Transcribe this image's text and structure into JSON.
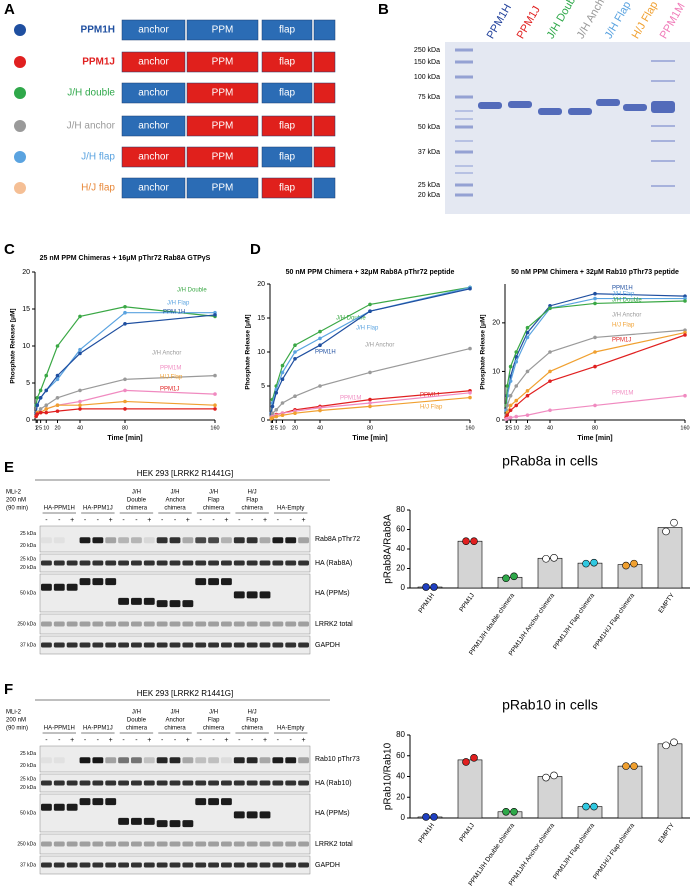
{
  "panel_labels": [
    "A",
    "B",
    "C",
    "D",
    "E",
    "F"
  ],
  "constructs": {
    "segment_labels": [
      "anchor",
      "PPM",
      "flap"
    ],
    "rows": [
      {
        "name": "PPM1H",
        "color": "#1f4fa0",
        "segment_colors": [
          "#2b6cb5",
          "#2b6cb5",
          "#2b6cb5",
          "#2b6cb5"
        ]
      },
      {
        "name": "PPM1J",
        "color": "#e02020",
        "segment_colors": [
          "#e0201c",
          "#e0201c",
          "#e0201c",
          "#e0201c"
        ]
      },
      {
        "name": "J/H double",
        "color": "#2fa84a",
        "segment_colors": [
          "#2b6cb5",
          "#e0201c",
          "#2b6cb5",
          "#e0201c"
        ]
      },
      {
        "name": "J/H anchor",
        "color": "#9a9a9a",
        "segment_colors": [
          "#2b6cb5",
          "#e0201c",
          "#e0201c",
          "#e0201c"
        ]
      },
      {
        "name": "J/H flap",
        "color": "#5aa3e0",
        "segment_colors": [
          "#e0201c",
          "#e0201c",
          "#2b6cb5",
          "#e0201c"
        ]
      },
      {
        "name": "H/J flap",
        "color": "#e8883a",
        "dot_color": "#f5bf95",
        "segment_colors": [
          "#2b6cb5",
          "#2b6cb5",
          "#e0201c",
          "#2b6cb5"
        ]
      }
    ]
  },
  "gel": {
    "lanes": [
      {
        "name": "PPM1H",
        "color": "#1f3f9a"
      },
      {
        "name": "PPM1J",
        "color": "#e02020"
      },
      {
        "name": "J/H Double",
        "color": "#2fa84a"
      },
      {
        "name": "J/H Anchor",
        "color": "#9a9a9a"
      },
      {
        "name": "J/H Flap",
        "color": "#5aa3e0"
      },
      {
        "name": "H/J Flap",
        "color": "#f0a030"
      },
      {
        "name": "PPM1M",
        "color": "#f07ab8"
      }
    ],
    "markers": [
      "250 kDa",
      "150 kDa",
      "100 kDa",
      "75 kDa",
      "50 kDa",
      "37 kDa",
      "25 kDa",
      "20 kDa"
    ]
  },
  "chart_data": [
    {
      "type": "line",
      "title": "25 nM PPM Chimeras + 16μM pThr72 Rab8A GTPγS",
      "x_label": "Time [min]",
      "y_label": "Phosphate Release [μM]",
      "x": [
        1,
        2,
        5,
        10,
        20,
        40,
        80,
        160
      ],
      "xlim": [
        0,
        160
      ],
      "xticks": [
        1,
        2,
        5,
        10,
        20,
        40,
        80,
        160
      ],
      "ylim": [
        0,
        20
      ],
      "yticks": [
        0,
        5,
        10,
        15,
        20
      ],
      "series": [
        {
          "name": "J/H Double",
          "color": "#3aa845",
          "values": [
            2,
            3,
            4,
            6,
            10,
            14,
            15.3,
            14
          ]
        },
        {
          "name": "J/H Flap",
          "color": "#5aa3e0",
          "values": [
            1,
            2,
            3,
            4,
            5.5,
            9.5,
            14.5,
            14.5
          ]
        },
        {
          "name": "PPM 1H",
          "color": "#1f4fa0",
          "values": [
            1,
            2,
            3,
            4,
            6,
            9,
            13,
            14.2
          ]
        },
        {
          "name": "J/H Anchor",
          "color": "#9a9a9a",
          "values": [
            0.5,
            1,
            1.5,
            2,
            3,
            4,
            5.5,
            6
          ]
        },
        {
          "name": "PPM1M",
          "color": "#f08ac0",
          "values": [
            0.5,
            1,
            1,
            1.5,
            2,
            2.5,
            4,
            3.5
          ]
        },
        {
          "name": "H/J Flap",
          "color": "#f0a030",
          "values": [
            0.5,
            1,
            1,
            1.5,
            2,
            2,
            2.5,
            2
          ]
        },
        {
          "name": "PPM1J",
          "color": "#e02020",
          "values": [
            0.5,
            0.8,
            1,
            1,
            1.2,
            1.5,
            1.5,
            1.5
          ]
        }
      ]
    },
    {
      "type": "line",
      "title": "50 nM PPM Chimera + 32μM Rab8A pThr72 peptide",
      "x_label": "Time [min]",
      "y_label": "Phosphate Release [μM]",
      "x": [
        1,
        2,
        5,
        10,
        20,
        40,
        80,
        160
      ],
      "xlim": [
        0,
        160
      ],
      "xticks": [
        1,
        2,
        5,
        10,
        20,
        40,
        80,
        160
      ],
      "ylim": [
        0,
        20
      ],
      "yticks": [
        0,
        5,
        10,
        15,
        20
      ],
      "series": [
        {
          "name": "J/H Double",
          "color": "#3aa845",
          "values": [
            1,
            3,
            5,
            8,
            11,
            13,
            17,
            19.5
          ]
        },
        {
          "name": "J/H Flap",
          "color": "#5aa3e0",
          "values": [
            1,
            2.5,
            4.5,
            7,
            10,
            12,
            16,
            19.5
          ]
        },
        {
          "name": "PPM1H",
          "color": "#1f4fa0",
          "values": [
            1,
            2,
            4,
            6,
            9,
            11,
            16,
            19.3
          ]
        },
        {
          "name": "J/H Anchor",
          "color": "#9a9a9a",
          "values": [
            0.5,
            1,
            1.5,
            2.5,
            3.5,
            5,
            7,
            10.5
          ]
        },
        {
          "name": "PPM1J",
          "color": "#e02020",
          "values": [
            0.3,
            0.5,
            0.8,
            1,
            1.5,
            2,
            3,
            4.3
          ]
        },
        {
          "name": "PPM1M",
          "color": "#f08ac0",
          "values": [
            0.3,
            0.5,
            0.7,
            1,
            1.3,
            1.8,
            2.5,
            4
          ]
        },
        {
          "name": "H/J Flap",
          "color": "#f0a030",
          "values": [
            0.2,
            0.3,
            0.5,
            0.7,
            1,
            1.4,
            2,
            3.3
          ]
        }
      ]
    },
    {
      "type": "line",
      "title": "50 nM PPM Chimera + 32μM Rab10 pThr73 peptide",
      "x_label": "Time [min]",
      "y_label": "Phosphate Release [μM]",
      "x": [
        1,
        2,
        5,
        10,
        20,
        40,
        80,
        160
      ],
      "xlim": [
        0,
        160
      ],
      "xticks": [
        1,
        2,
        5,
        10,
        20,
        40,
        80,
        160
      ],
      "ylim": [
        0,
        28
      ],
      "yticks": [
        0,
        10,
        20
      ],
      "series": [
        {
          "name": "PPM1H",
          "color": "#1f4fa0",
          "values": [
            2,
            5,
            9,
            13,
            18,
            23.5,
            26,
            25.5
          ]
        },
        {
          "name": "J/H Flap",
          "color": "#5aa3e0",
          "values": [
            2,
            5,
            8,
            12,
            17,
            23,
            25,
            25
          ]
        },
        {
          "name": "J/H Double",
          "color": "#3aa845",
          "values": [
            3,
            7,
            11,
            14,
            19,
            23,
            24,
            24.5
          ]
        },
        {
          "name": "J/H Anchor",
          "color": "#9a9a9a",
          "values": [
            1,
            3,
            5,
            7,
            10,
            14,
            17,
            18.5
          ]
        },
        {
          "name": "H/J Flap",
          "color": "#f0a030",
          "values": [
            0.5,
            1.5,
            3,
            4,
            6,
            10,
            14,
            18
          ]
        },
        {
          "name": "PPM1J",
          "color": "#e02020",
          "values": [
            0.5,
            1,
            2,
            3,
            5,
            8,
            11,
            17.5
          ]
        },
        {
          "name": "PPM1M",
          "color": "#f08ac0",
          "values": [
            0.2,
            0.3,
            0.5,
            0.7,
            1,
            2,
            3,
            5
          ]
        }
      ]
    },
    {
      "type": "bar",
      "title": "pRab8a in cells",
      "y_label": "pRab8A/Rab8A",
      "color": "#d4d4d4",
      "categories": [
        "PPM1H",
        "PPM1J",
        "PPM1J/H double chimera",
        "PPM1J/H Anchor chimera",
        "PPM1J/H Flap chimera",
        "PPM1H/J Flap chimera",
        "EMPTY"
      ],
      "values": [
        1,
        48,
        11,
        30.5,
        25.5,
        24,
        62
      ],
      "points": [
        [
          1,
          1
        ],
        [
          48,
          48
        ],
        [
          10,
          12
        ],
        [
          30,
          31
        ],
        [
          25,
          26
        ],
        [
          23,
          25
        ],
        [
          58,
          67
        ]
      ],
      "point_colors": [
        "#2040c0",
        "#e02020",
        "#2fa84a",
        "#ffffff",
        "#30c8e0",
        "#f0a030",
        "#ffffff"
      ],
      "ylim": [
        0,
        80
      ],
      "yticks": [
        0,
        20,
        40,
        60,
        80
      ]
    },
    {
      "type": "bar",
      "title": "pRab10 in cells",
      "y_label": "pRab10/Rab10",
      "color": "#d4d4d4",
      "categories": [
        "PPM1H",
        "PPM1J",
        "PPM1J/H Double chimera",
        "PPM1J/H Anchor chimera",
        "PPM1J/H Flap chimera",
        "PPM1H/J Flap chimera",
        "EMPTY"
      ],
      "values": [
        1,
        56,
        6,
        40,
        11,
        50,
        71.5
      ],
      "points": [
        [
          1,
          1
        ],
        [
          54,
          58
        ],
        [
          6,
          6
        ],
        [
          39,
          41
        ],
        [
          11,
          11
        ],
        [
          50,
          50
        ],
        [
          70,
          73
        ]
      ],
      "point_colors": [
        "#2040c0",
        "#e02020",
        "#2fa84a",
        "#ffffff",
        "#30c8e0",
        "#f0a030",
        "#ffffff"
      ],
      "ylim": [
        0,
        80
      ],
      "yticks": [
        0,
        20,
        40,
        60,
        80
      ]
    }
  ],
  "blots": [
    {
      "header": "HEK 293 [LRRK2 R1441G]",
      "treatment": [
        "MLi-2",
        "200 nM",
        "(90 min)"
      ],
      "groups": [
        [
          "HA-PPM1H"
        ],
        [
          "HA-PPM1J"
        ],
        [
          "J/H",
          "Double",
          "chimera"
        ],
        [
          "J/H",
          "Anchor",
          "chimera"
        ],
        [
          "J/H",
          "Flap",
          "chimera"
        ],
        [
          "H/J",
          "Flap",
          "chimera"
        ],
        [
          "HA-Empty"
        ]
      ],
      "pattern": [
        "-",
        "-",
        "+"
      ],
      "rows": [
        {
          "label": "Rab8A pThr72",
          "markers": [
            "25 kDa",
            "20 kDa"
          ]
        },
        {
          "label": "HA (Rab8A)",
          "markers": [
            "25 kDa",
            "20 kDa"
          ]
        },
        {
          "label": "HA (PPMs)",
          "markers": [
            "50 kDa"
          ]
        },
        {
          "label": "LRRK2 total",
          "markers": [
            "250 kDa"
          ]
        },
        {
          "label": "GAPDH",
          "markers": [
            "37 kDa"
          ]
        }
      ]
    },
    {
      "header": "HEK 293 [LRRK2 R1441G]",
      "treatment": [
        "MLi-2",
        "200 nM",
        "(90 min)"
      ],
      "groups": [
        [
          "HA-PPM1H"
        ],
        [
          "HA-PPM1J"
        ],
        [
          "J/H",
          "Double",
          "chimera"
        ],
        [
          "J/H",
          "Anchor",
          "chimera"
        ],
        [
          "J/H",
          "Flap",
          "chimera"
        ],
        [
          "H/J",
          "Flap",
          "chimera"
        ],
        [
          "HA-Empty"
        ]
      ],
      "pattern": [
        "-",
        "-",
        "+"
      ],
      "rows": [
        {
          "label": "Rab10  pThr73",
          "markers": [
            "25 kDa",
            "20 kDa"
          ]
        },
        {
          "label": "HA (Rab10)",
          "markers": [
            "25 kDa",
            "20 kDa"
          ]
        },
        {
          "label": "HA (PPMs)",
          "markers": [
            "50 kDa"
          ]
        },
        {
          "label": "LRRK2 total",
          "markers": [
            "250 kDa"
          ]
        },
        {
          "label": "GAPDH",
          "markers": [
            "37 kDa"
          ]
        }
      ]
    }
  ]
}
